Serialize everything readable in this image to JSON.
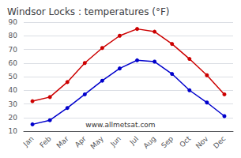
{
  "chart_data": {
    "type": "line",
    "title": "Windsor Locks : temperatures (°F)",
    "categories": [
      "Jan",
      "Feb",
      "Mar",
      "Apr",
      "May",
      "Jun",
      "Jul",
      "Aug",
      "Sep",
      "Oct",
      "Nov",
      "Dec"
    ],
    "series": [
      {
        "color": "#cc0000",
        "values": [
          32,
          35,
          46,
          60,
          71,
          80,
          85,
          83,
          74,
          63,
          51,
          37
        ]
      },
      {
        "color": "#0000cc",
        "values": [
          15,
          18,
          27,
          37,
          47,
          56,
          62,
          61,
          52,
          40,
          31,
          21
        ]
      }
    ],
    "ylim": [
      10,
      90
    ],
    "yticks": [
      10,
      20,
      30,
      40,
      50,
      60,
      70,
      80,
      90
    ],
    "grid": true,
    "marker": "circle",
    "annotations": [
      "www.allmetsat.com"
    ]
  }
}
